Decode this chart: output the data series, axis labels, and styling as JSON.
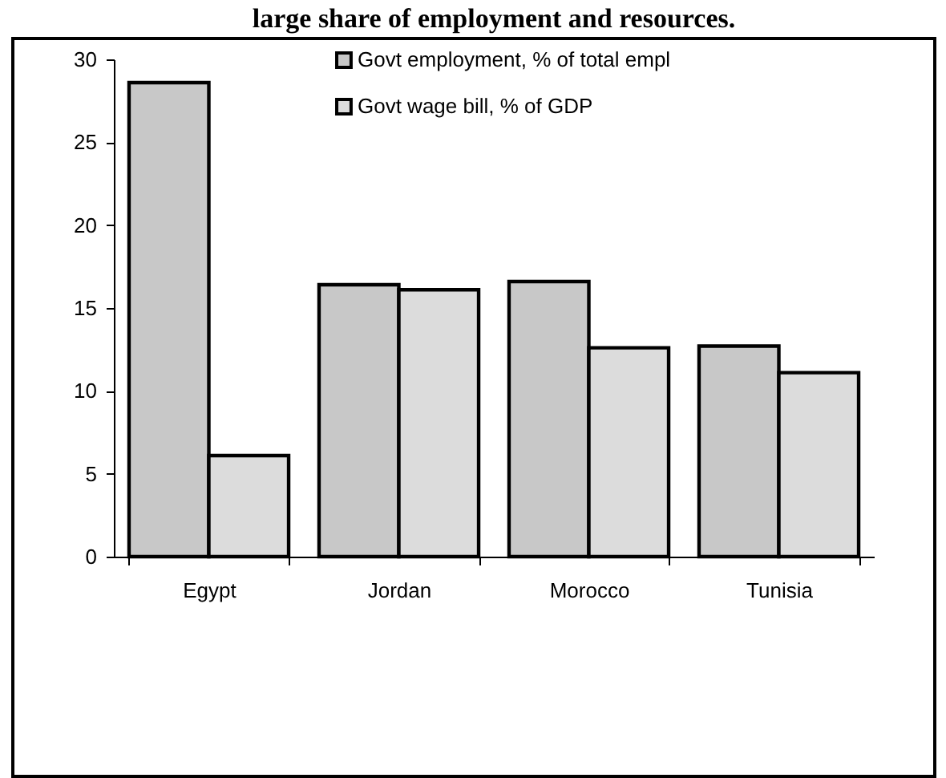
{
  "chart_data": {
    "type": "bar",
    "title": "large share of employment and resources.",
    "categories": [
      "Egypt",
      "Jordan",
      "Morocco",
      "Tunisia"
    ],
    "series": [
      {
        "name": "Govt employment, % of total empl",
        "color": "#c8c8c8",
        "values": [
          28.6,
          16.4,
          16.6,
          12.7
        ]
      },
      {
        "name": "Govt wage bill, % of GDP",
        "color": "#dcdcdc",
        "values": [
          6.1,
          16.1,
          12.6,
          11.1
        ]
      }
    ],
    "ylim": [
      0,
      30
    ],
    "yticks": [
      0,
      5,
      10,
      15,
      20,
      25,
      30
    ],
    "legend": "top"
  }
}
